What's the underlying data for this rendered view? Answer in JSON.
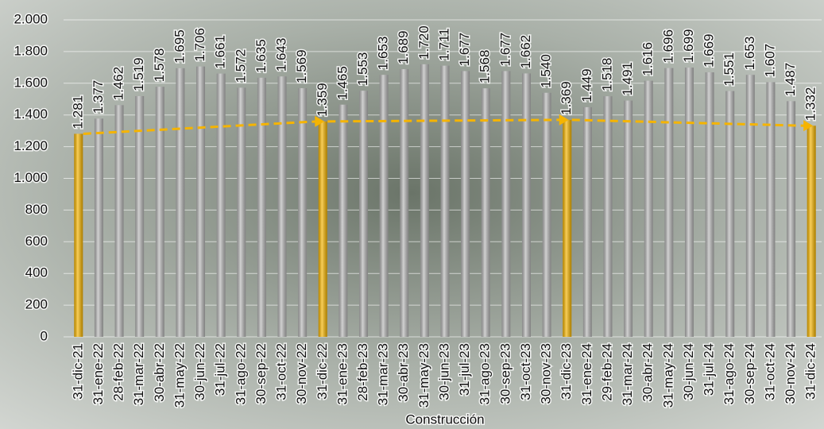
{
  "chart_data": {
    "type": "bar",
    "x_label": "Construcción",
    "categories": [
      "31-dic-21",
      "31-ene-22",
      "28-feb-22",
      "31-mar-22",
      "30-abr-22",
      "31-may-22",
      "30-jun-22",
      "31-jul-22",
      "31-ago-22",
      "30-sep-22",
      "31-oct-22",
      "30-nov-22",
      "31-dic-22",
      "31-ene-23",
      "28-feb-23",
      "31-mar-23",
      "30-abr-23",
      "31-may-23",
      "30-jun-23",
      "31-jul-23",
      "31-ago-23",
      "30-sep-23",
      "31-oct-23",
      "30-nov-23",
      "31-dic-23",
      "31-ene-24",
      "29-feb-24",
      "31-mar-24",
      "30-abr-24",
      "31-may-24",
      "30-jun-24",
      "31-jul-24",
      "31-ago-24",
      "30-sep-24",
      "31-oct-24",
      "30-nov-24",
      "31-dic-24"
    ],
    "values": [
      1281,
      1377,
      1462,
      1519,
      1578,
      1695,
      1706,
      1661,
      1572,
      1635,
      1643,
      1569,
      1359,
      1465,
      1553,
      1653,
      1689,
      1720,
      1711,
      1677,
      1568,
      1677,
      1662,
      1540,
      1369,
      1449,
      1518,
      1491,
      1616,
      1696,
      1699,
      1669,
      1551,
      1653,
      1607,
      1487,
      1332
    ],
    "value_labels": [
      "1.281",
      "1.377",
      "1.462",
      "1.519",
      "1.578",
      "1.695",
      "1.706",
      "1.661",
      "1.572",
      "1.635",
      "1.643",
      "1.569",
      "1.359",
      "1.465",
      "1.553",
      "1.653",
      "1.689",
      "1.720",
      "1.711",
      "1.677",
      "1.568",
      "1.677",
      "1.662",
      "1.540",
      "1.369",
      "1.449",
      "1.518",
      "1.491",
      "1.616",
      "1.696",
      "1.699",
      "1.669",
      "1.551",
      "1.653",
      "1.607",
      "1.487",
      "1.332"
    ],
    "colors": [
      "#f5b400",
      "#b8b8b8",
      "#b8b8b8",
      "#b8b8b8",
      "#b8b8b8",
      "#b8b8b8",
      "#b8b8b8",
      "#b8b8b8",
      "#b8b8b8",
      "#b8b8b8",
      "#b8b8b8",
      "#b8b8b8",
      "#f5b400",
      "#b8b8b8",
      "#b8b8b8",
      "#b8b8b8",
      "#b8b8b8",
      "#b8b8b8",
      "#b8b8b8",
      "#b8b8b8",
      "#b8b8b8",
      "#b8b8b8",
      "#b8b8b8",
      "#b8b8b8",
      "#f5b400",
      "#b8b8b8",
      "#b8b8b8",
      "#b8b8b8",
      "#b8b8b8",
      "#b8b8b8",
      "#b8b8b8",
      "#b8b8b8",
      "#b8b8b8",
      "#b8b8b8",
      "#b8b8b8",
      "#b8b8b8",
      "#f5b400"
    ],
    "trend_color": "#f5b400",
    "ylim": [
      0,
      2000
    ],
    "yticks": [
      0,
      200,
      400,
      600,
      800,
      {
        "value": 1000,
        "label": "1.000"
      },
      {
        "value": 1200,
        "label": "1.200"
      },
      {
        "value": 1400,
        "label": "1.400"
      },
      {
        "value": 1600,
        "label": "1.600"
      },
      {
        "value": 1800,
        "label": "1.800"
      },
      {
        "value": 2000,
        "label": "2.000"
      }
    ],
    "grid": true
  }
}
